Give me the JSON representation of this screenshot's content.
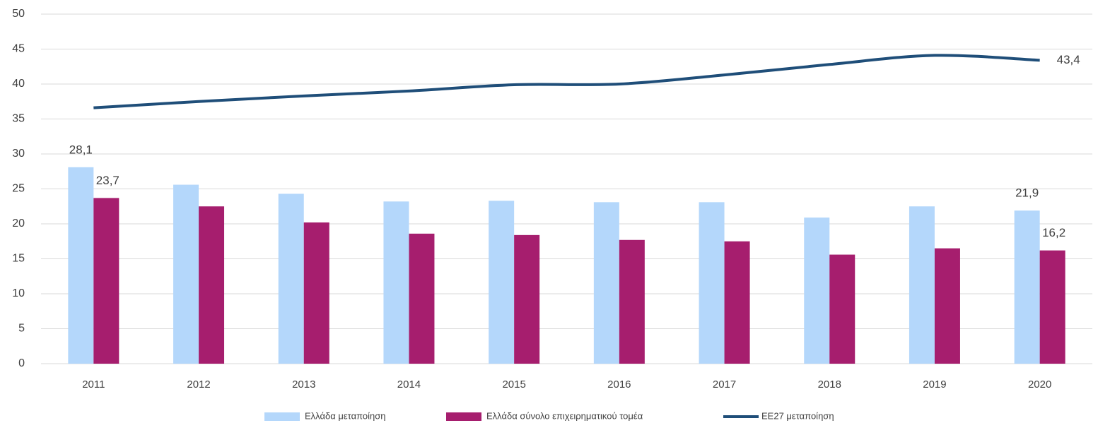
{
  "chart_data": {
    "type": "bar_line",
    "categories": [
      "2011",
      "2012",
      "2013",
      "2014",
      "2015",
      "2016",
      "2017",
      "2018",
      "2019",
      "2020"
    ],
    "series": [
      {
        "name": "Ελλάδα μεταποίηση",
        "type": "bar",
        "color": "#b4d7fb",
        "values": [
          28.1,
          25.6,
          24.3,
          23.2,
          23.3,
          23.1,
          23.1,
          20.9,
          22.5,
          21.9
        ],
        "value_labels": [
          "28,1",
          null,
          null,
          null,
          null,
          null,
          null,
          null,
          null,
          "21,9"
        ]
      },
      {
        "name": "Ελλάδα σύνολο επιχειρηματικού τομέα",
        "type": "bar",
        "color": "#a61e6e",
        "values": [
          23.7,
          22.5,
          20.2,
          18.6,
          18.4,
          17.7,
          17.5,
          15.6,
          16.5,
          16.2
        ],
        "value_labels": [
          "23,7",
          null,
          null,
          null,
          null,
          null,
          null,
          null,
          null,
          "16,2"
        ]
      },
      {
        "name": "ΕΕ27 μεταποίηση",
        "type": "line",
        "color": "#1f4e79",
        "values": [
          36.6,
          37.5,
          38.3,
          39.0,
          39.9,
          40.0,
          41.3,
          42.8,
          44.1,
          43.4
        ],
        "value_labels": [
          null,
          null,
          null,
          null,
          null,
          null,
          null,
          null,
          null,
          "43,4"
        ]
      }
    ],
    "ylim": [
      0,
      50
    ],
    "yticks": [
      0,
      5,
      10,
      15,
      20,
      25,
      30,
      35,
      40,
      45,
      50
    ],
    "grid": true,
    "legend": "bottom"
  }
}
